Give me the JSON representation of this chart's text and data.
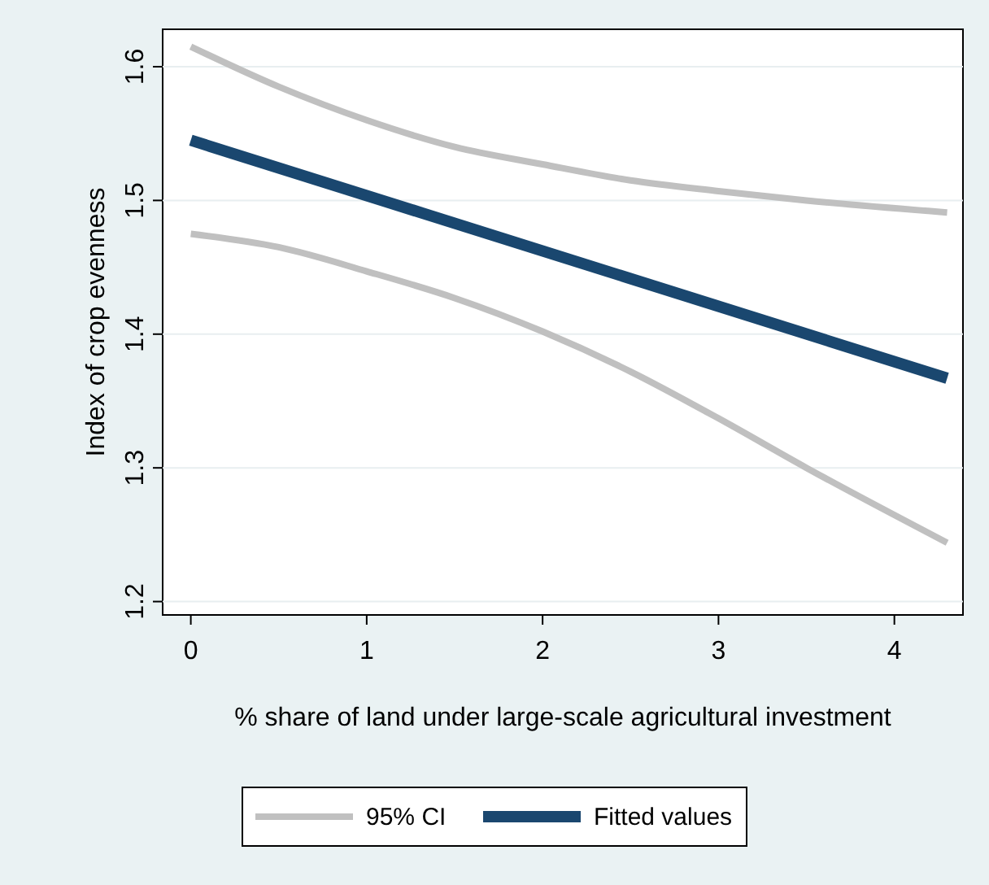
{
  "chart_data": {
    "type": "line",
    "xlabel": "% share of land under large-scale agricultural investment",
    "ylabel": "Index of crop evenness",
    "xlim": [
      -0.16,
      4.39
    ],
    "ylim": [
      1.19,
      1.628
    ],
    "xticks": [
      0,
      1,
      2,
      3,
      4
    ],
    "yticks": [
      1.2,
      1.3,
      1.4,
      1.5,
      1.6
    ],
    "grid": "y",
    "legend": "bottom",
    "series": [
      {
        "name": "95% CI",
        "color": "#c0c0c0",
        "x": [
          0,
          0.5,
          1,
          1.5,
          2,
          2.5,
          3,
          3.5,
          4.3
        ],
        "values": [
          1.615,
          1.585,
          1.56,
          1.54,
          1.527,
          1.515,
          1.507,
          1.5,
          1.491
        ]
      },
      {
        "color": "#c0c0c0",
        "x": [
          0,
          0.5,
          1,
          1.5,
          2,
          2.5,
          3,
          3.5,
          4.3
        ],
        "values": [
          1.475,
          1.465,
          1.447,
          1.427,
          1.402,
          1.372,
          1.337,
          1.3,
          1.244
        ]
      },
      {
        "name": "Fitted values",
        "color": "#1a476f",
        "x": [
          0,
          4.3
        ],
        "values": [
          1.545,
          1.367
        ]
      }
    ]
  }
}
